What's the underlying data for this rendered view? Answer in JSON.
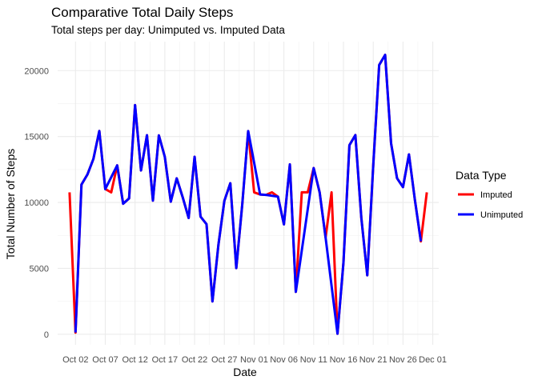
{
  "chart_data": {
    "type": "line",
    "title": "Comparative Total Daily Steps",
    "subtitle": "Total steps per day: Unimputed vs. Imputed Data",
    "xlabel": "Date",
    "ylabel": "Total Number of Steps",
    "ylim": [
      -800,
      22200
    ],
    "xlim": [
      "2012-09-29",
      "2012-12-02"
    ],
    "grid": true,
    "legend": {
      "title": "Data Type",
      "placement": "right",
      "items": [
        "Imputed",
        "Unimputed"
      ]
    },
    "x_ticks": [
      "Oct 02",
      "Oct 07",
      "Oct 12",
      "Oct 17",
      "Oct 22",
      "Oct 27",
      "Nov 01",
      "Nov 06",
      "Nov 11",
      "Nov 16",
      "Nov 21",
      "Nov 26",
      "Dec 01"
    ],
    "y_ticks": [
      "0",
      "5000",
      "10000",
      "15000",
      "20000"
    ],
    "x": [
      "2012-10-01",
      "2012-10-02",
      "2012-10-03",
      "2012-10-04",
      "2012-10-05",
      "2012-10-06",
      "2012-10-07",
      "2012-10-08",
      "2012-10-09",
      "2012-10-10",
      "2012-10-11",
      "2012-10-12",
      "2012-10-13",
      "2012-10-14",
      "2012-10-15",
      "2012-10-16",
      "2012-10-17",
      "2012-10-18",
      "2012-10-19",
      "2012-10-20",
      "2012-10-21",
      "2012-10-22",
      "2012-10-23",
      "2012-10-24",
      "2012-10-25",
      "2012-10-26",
      "2012-10-27",
      "2012-10-28",
      "2012-10-29",
      "2012-10-30",
      "2012-10-31",
      "2012-11-01",
      "2012-11-02",
      "2012-11-03",
      "2012-11-04",
      "2012-11-05",
      "2012-11-06",
      "2012-11-07",
      "2012-11-08",
      "2012-11-09",
      "2012-11-10",
      "2012-11-11",
      "2012-11-12",
      "2012-11-13",
      "2012-11-14",
      "2012-11-15",
      "2012-11-16",
      "2012-11-17",
      "2012-11-18",
      "2012-11-19",
      "2012-11-20",
      "2012-11-21",
      "2012-11-22",
      "2012-11-23",
      "2012-11-24",
      "2012-11-25",
      "2012-11-26",
      "2012-11-27",
      "2012-11-28",
      "2012-11-29",
      "2012-11-30"
    ],
    "series": [
      {
        "name": "Imputed",
        "color": "#ff0000",
        "values": [
          10766,
          126,
          11352,
          12116,
          13294,
          15420,
          11015,
          10766,
          12811,
          9900,
          10304,
          17382,
          12426,
          15098,
          10139,
          15084,
          13452,
          10056,
          11829,
          10395,
          8821,
          13460,
          8918,
          8355,
          2492,
          6778,
          10119,
          11458,
          5018,
          9819,
          15414,
          10766,
          10600,
          10571,
          10766,
          10439,
          8334,
          12883,
          3219,
          10766,
          10766,
          12608,
          10765,
          7336,
          10766,
          41,
          5441,
          14339,
          15110,
          8841,
          4472,
          12787,
          20427,
          21194,
          14478,
          11834,
          11162,
          13646,
          10183,
          7047,
          10766
        ]
      },
      {
        "name": "Unimputed",
        "color": "#0000ff",
        "values": [
          null,
          126,
          11352,
          12116,
          13294,
          15420,
          11015,
          null,
          12811,
          9900,
          10304,
          17382,
          12426,
          15098,
          10139,
          15084,
          13452,
          10056,
          11829,
          10395,
          8821,
          13460,
          8918,
          8355,
          2492,
          6778,
          10119,
          11458,
          5018,
          9819,
          15414,
          null,
          10600,
          10571,
          null,
          10439,
          8334,
          12883,
          3219,
          null,
          null,
          12608,
          10765,
          7336,
          null,
          41,
          5441,
          14339,
          15110,
          8841,
          4472,
          12787,
          20427,
          21194,
          14478,
          11834,
          11162,
          13646,
          10183,
          7047,
          null
        ]
      }
    ]
  }
}
